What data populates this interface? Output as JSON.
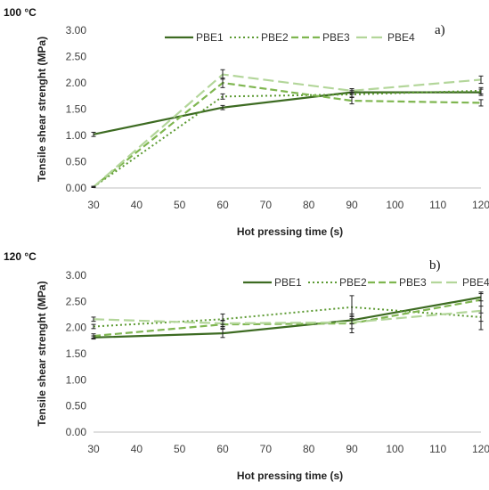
{
  "chart_data": [
    {
      "type": "line",
      "temperature_label": "100 °C",
      "panel_label": "a)",
      "xlabel": "Hot pressing time (s)",
      "ylabel": "Tensile shear strenght (MPa)",
      "xlim": [
        30,
        120
      ],
      "ylim": [
        0,
        3
      ],
      "xticks": [
        "30",
        "40",
        "50",
        "60",
        "70",
        "80",
        "90",
        "100",
        "110",
        "120"
      ],
      "yticks": [
        "0.00",
        "0.50",
        "1.00",
        "1.50",
        "2.00",
        "2.50",
        "3.00"
      ],
      "grid": false,
      "legend": "top",
      "series": [
        {
          "name": "PBE1",
          "x": [
            30,
            60,
            90,
            120
          ],
          "y": [
            1.02,
            1.53,
            1.82,
            1.82
          ],
          "err": [
            0.04,
            0.04,
            0.04,
            0.06
          ]
        },
        {
          "name": "PBE2",
          "x": [
            30,
            60,
            90,
            120
          ],
          "y": [
            0.02,
            1.74,
            1.78,
            1.85
          ],
          "err": [
            0.01,
            0.05,
            0.05,
            0.06
          ]
        },
        {
          "name": "PBE3",
          "x": [
            30,
            60,
            90,
            120
          ],
          "y": [
            0.02,
            2.0,
            1.66,
            1.62
          ],
          "err": [
            0.01,
            0.09,
            0.06,
            0.06
          ]
        },
        {
          "name": "PBE4",
          "x": [
            30,
            60,
            90,
            120
          ],
          "y": [
            0.02,
            2.16,
            1.85,
            2.06
          ],
          "err": [
            0.01,
            0.09,
            0.04,
            0.07
          ]
        }
      ]
    },
    {
      "type": "line",
      "temperature_label": "120 °C",
      "panel_label": "b)",
      "xlabel": "Hot pressing time (s)",
      "ylabel": "Tensile shear strenght (MPa)",
      "xlim": [
        30,
        120
      ],
      "ylim": [
        0,
        3
      ],
      "xticks": [
        "30",
        "40",
        "50",
        "60",
        "70",
        "80",
        "90",
        "100",
        "110",
        "120"
      ],
      "yticks": [
        "0.00",
        "0.50",
        "1.00",
        "1.50",
        "2.00",
        "2.50",
        "3.00"
      ],
      "grid": false,
      "legend": "top",
      "series": [
        {
          "name": "PBE1",
          "x": [
            30,
            60,
            90,
            120
          ],
          "y": [
            1.81,
            1.89,
            2.14,
            2.58
          ],
          "err": [
            0.03,
            0.08,
            0.07,
            0.07
          ]
        },
        {
          "name": "PBE2",
          "x": [
            30,
            60,
            90,
            120
          ],
          "y": [
            2.02,
            2.16,
            2.39,
            2.2
          ],
          "err": [
            0.04,
            0.1,
            0.22,
            0.08
          ]
        },
        {
          "name": "PBE3",
          "x": [
            30,
            60,
            90,
            120
          ],
          "y": [
            1.84,
            2.06,
            2.08,
            2.53
          ],
          "err": [
            0.04,
            0.07,
            0.18,
            0.12
          ]
        },
        {
          "name": "PBE4",
          "x": [
            30,
            60,
            90,
            120
          ],
          "y": [
            2.16,
            2.08,
            2.1,
            2.32
          ],
          "err": [
            0.04,
            0.06,
            0.12,
            0.36
          ]
        }
      ]
    }
  ],
  "style": {
    "series_colors": [
      "#3d6b22",
      "#5c9a32",
      "#7fb650",
      "#b3d69a"
    ],
    "axis_color": "#bfbfbf",
    "errorbar_color": "#222222"
  }
}
